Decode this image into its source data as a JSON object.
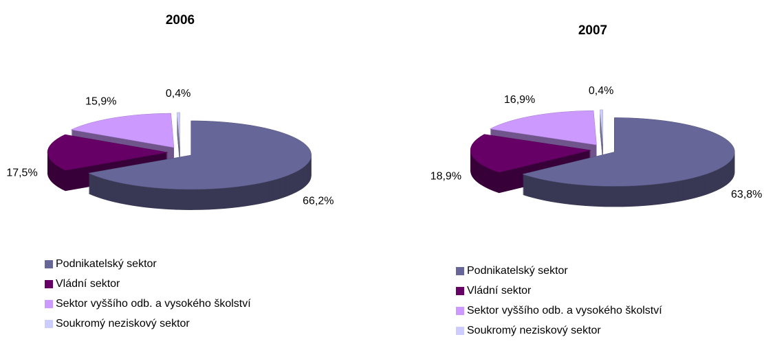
{
  "chart_data": [
    {
      "type": "pie",
      "title": "2006",
      "categories": [
        "Podnikatelský sektor",
        "Vládní sektor",
        "Sektor vyššího odb. a vysokého školství",
        "Soukromý neziskový sektor"
      ],
      "values": [
        66.2,
        17.5,
        15.9,
        0.4
      ],
      "value_labels": [
        "66,2%",
        "17,5%",
        "15,9%",
        "0,4%"
      ],
      "colors": [
        "#666699",
        "#660066",
        "#cc99ff",
        "#ccccff"
      ]
    },
    {
      "type": "pie",
      "title": "2007",
      "categories": [
        "Podnikatelský sektor",
        "Vládní sektor",
        "Sektor vyššího odb. a vysokého školství",
        "Soukromý neziskový sektor"
      ],
      "values": [
        63.8,
        18.9,
        16.9,
        0.4
      ],
      "value_labels": [
        "63,8%",
        "18,9%",
        "16,9%",
        "0,4%"
      ],
      "colors": [
        "#666699",
        "#660066",
        "#cc99ff",
        "#ccccff"
      ]
    }
  ]
}
